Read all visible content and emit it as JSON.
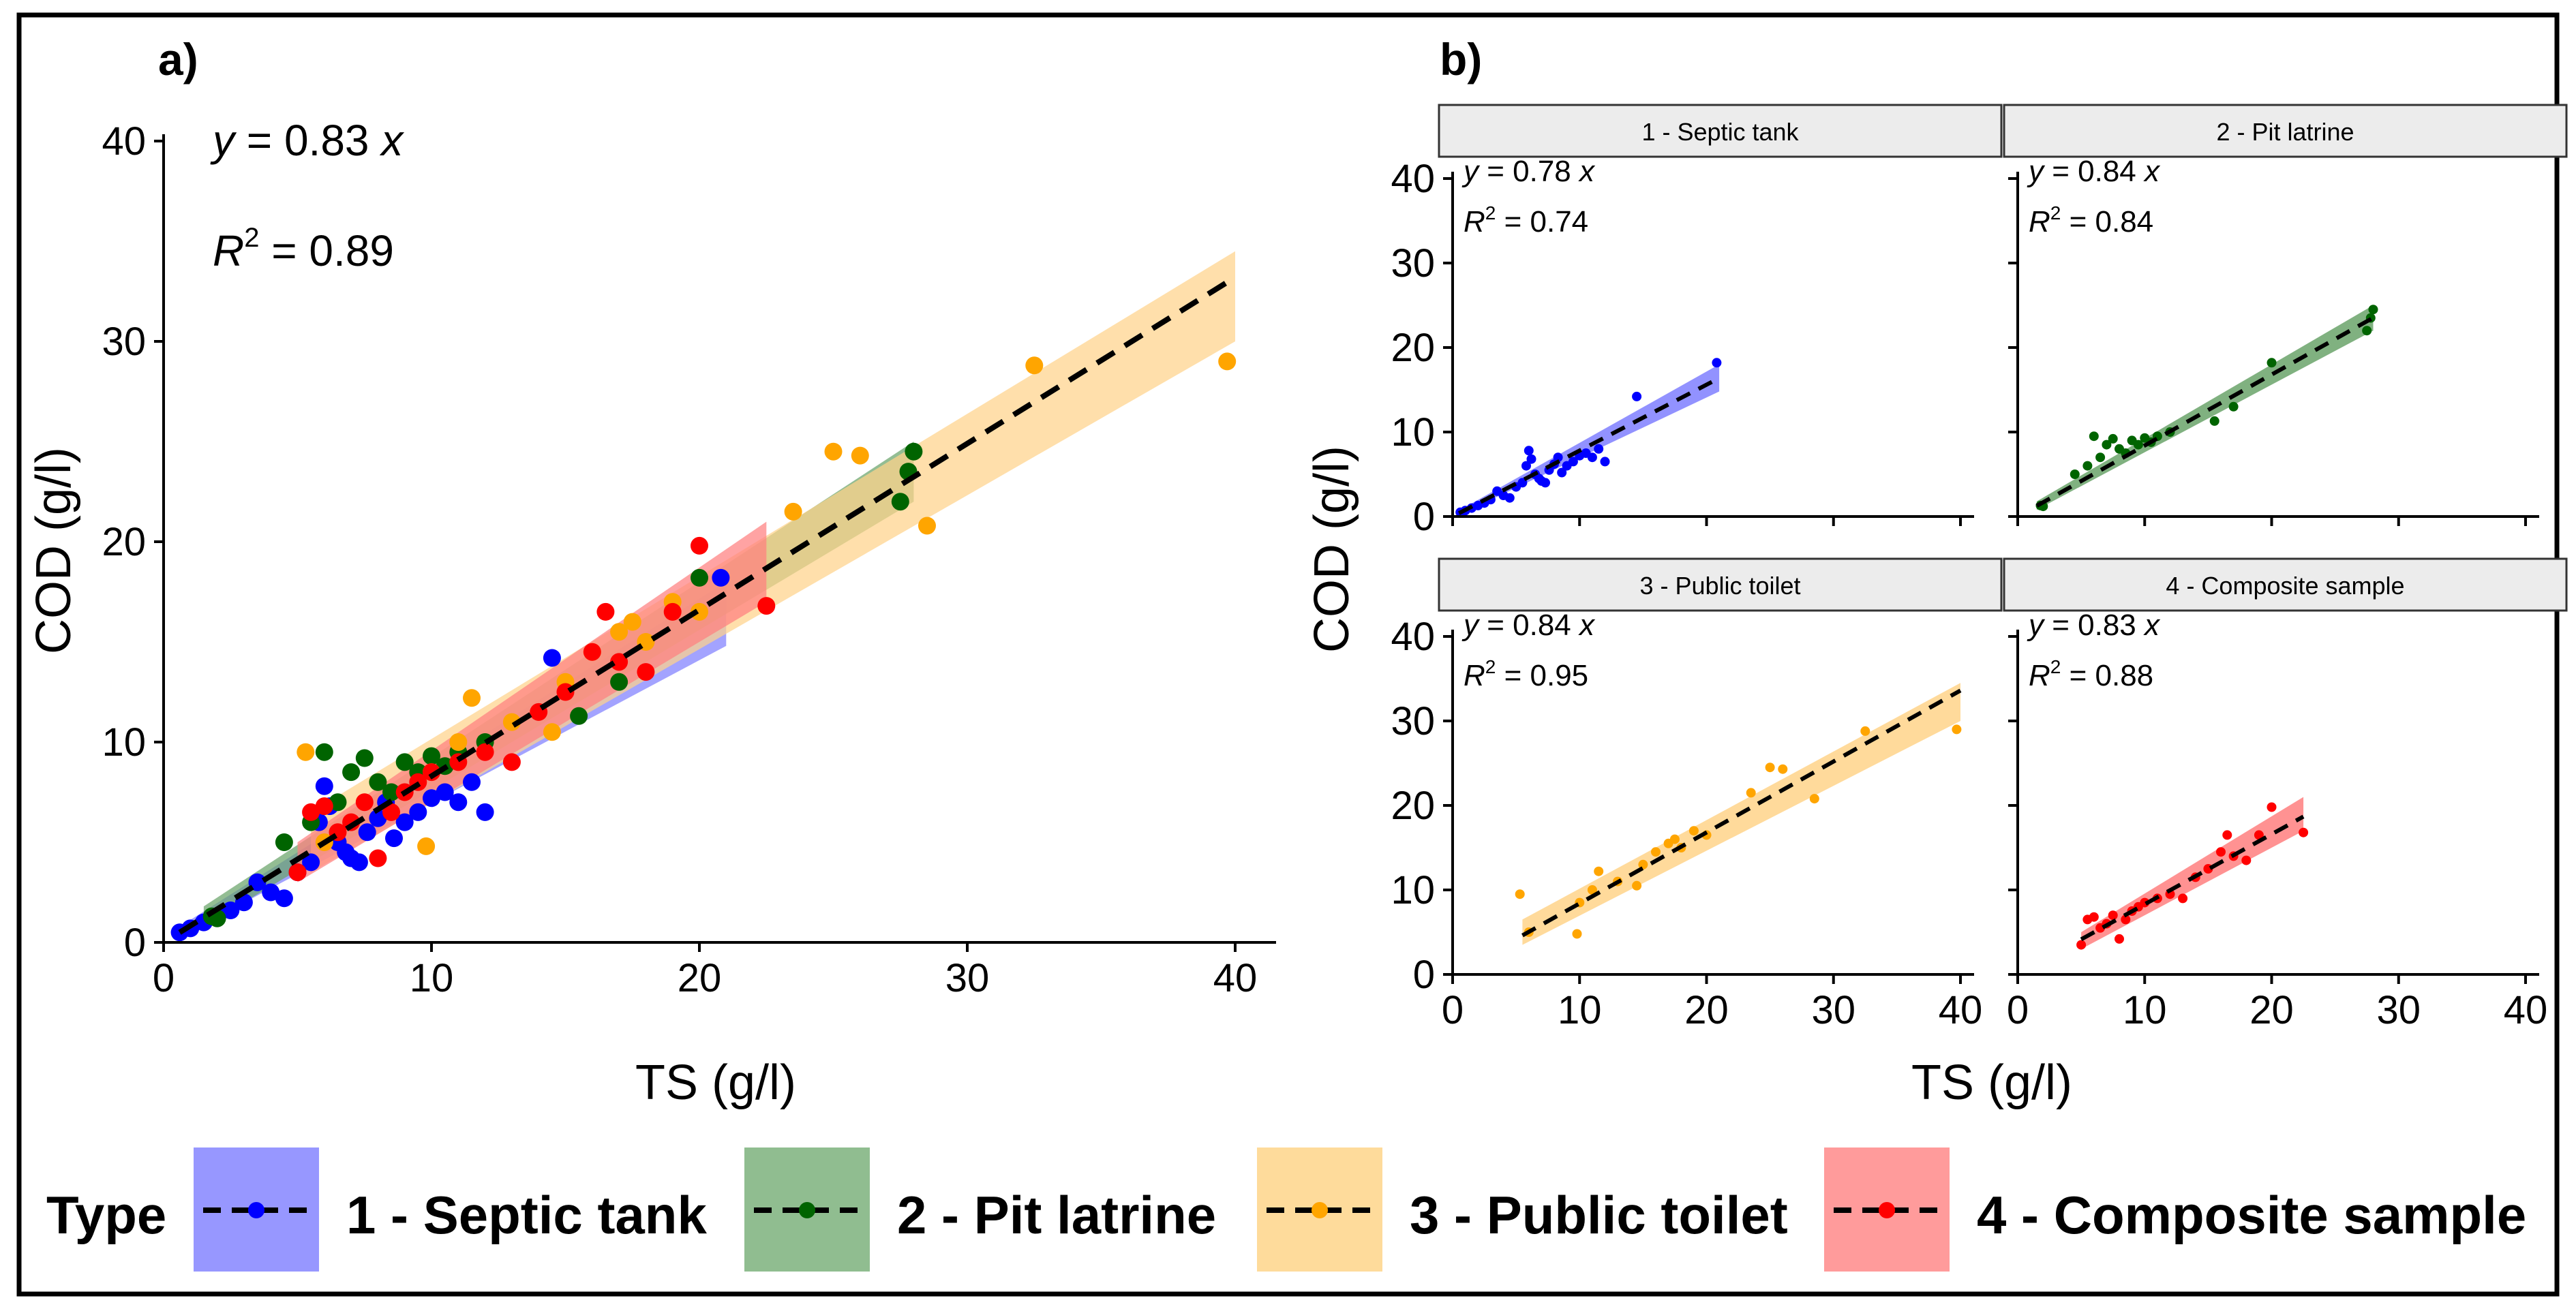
{
  "chart_data": {
    "type": "scatter",
    "axis_range": [
      0,
      40
    ],
    "ticks": [
      0,
      10,
      20,
      30,
      40
    ],
    "xlabel": "TS (g/l)",
    "ylabel": "COD (g/l)",
    "series_colors": {
      "1 - Septic tank": "#0000ff",
      "2 - Pit latrine": "#006400",
      "3 - Public toilet": "#ffa500",
      "4 - Composite sample": "#ff0000"
    },
    "band_colors": {
      "1 - Septic tank": "#7f7fff",
      "2 - Pit latrine": "#6aa36a",
      "3 - Public toilet": "#ffd38a",
      "4 - Composite sample": "#ff7f7f"
    },
    "panel_a": {
      "label": "a)",
      "eq": "y = 0.83 x",
      "r2": "R2 = 0.89",
      "r2_value": "0.89",
      "slope": 0.83
    },
    "panel_b": {
      "label": "b)",
      "facets": [
        {
          "name": "1 - Septic tank",
          "eq": "y = 0.78 x",
          "r2_value": "0.74",
          "slope": 0.78,
          "fit_x": [
            0.5,
            21
          ],
          "band": [
            [
              0.5,
              0.2,
              0.7
            ],
            [
              21,
              14.8,
              18.0
            ]
          ],
          "points": [
            [
              0.6,
              0.5
            ],
            [
              1.0,
              0.7
            ],
            [
              1.5,
              1.0
            ],
            [
              2.0,
              1.3
            ],
            [
              2.5,
              1.6
            ],
            [
              3.0,
              2.0
            ],
            [
              3.5,
              3.0
            ],
            [
              4.0,
              2.5
            ],
            [
              4.5,
              2.2
            ],
            [
              5.0,
              3.5
            ],
            [
              5.5,
              4.0
            ],
            [
              5.8,
              6.0
            ],
            [
              6.0,
              7.8
            ],
            [
              6.2,
              6.8
            ],
            [
              6.5,
              5.0
            ],
            [
              6.8,
              4.5
            ],
            [
              7.0,
              4.2
            ],
            [
              7.3,
              4.0
            ],
            [
              7.6,
              5.5
            ],
            [
              8.0,
              6.2
            ],
            [
              8.3,
              7.0
            ],
            [
              8.6,
              5.2
            ],
            [
              9.0,
              6.0
            ],
            [
              9.5,
              6.5
            ],
            [
              10.0,
              7.2
            ],
            [
              10.5,
              7.5
            ],
            [
              11.0,
              7.0
            ],
            [
              11.5,
              8.0
            ],
            [
              12.0,
              6.5
            ],
            [
              14.5,
              14.2
            ],
            [
              20.8,
              18.2
            ]
          ]
        },
        {
          "name": "2 - Pit latrine",
          "eq": "y = 0.84 x",
          "r2_value": "0.84",
          "slope": 0.84,
          "fit_x": [
            1.5,
            28
          ],
          "band": [
            [
              1.5,
              0.8,
              1.8
            ],
            [
              28,
              22.0,
              25.0
            ]
          ],
          "points": [
            [
              1.8,
              1.3
            ],
            [
              2.0,
              1.2
            ],
            [
              4.5,
              5.0
            ],
            [
              5.5,
              6.0
            ],
            [
              6.0,
              9.5
            ],
            [
              6.5,
              7.0
            ],
            [
              7.0,
              8.5
            ],
            [
              7.5,
              9.2
            ],
            [
              8.0,
              8.0
            ],
            [
              8.5,
              7.5
            ],
            [
              9.0,
              9.0
            ],
            [
              9.5,
              8.5
            ],
            [
              10.0,
              9.3
            ],
            [
              10.5,
              8.8
            ],
            [
              11.0,
              9.5
            ],
            [
              12.0,
              10.0
            ],
            [
              15.5,
              11.3
            ],
            [
              17.0,
              13.0
            ],
            [
              20.0,
              18.2
            ],
            [
              27.5,
              22.0
            ],
            [
              28.0,
              24.5
            ],
            [
              27.8,
              23.5
            ]
          ]
        },
        {
          "name": "3 - Public toilet",
          "eq": "y = 0.84 x",
          "r2_value": "0.95",
          "slope": 0.84,
          "fit_x": [
            5.5,
            40
          ],
          "band": [
            [
              5.5,
              3.5,
              6.5
            ],
            [
              40,
              30.0,
              34.5
            ]
          ],
          "points": [
            [
              5.3,
              9.5
            ],
            [
              6.0,
              5.0
            ],
            [
              9.8,
              4.8
            ],
            [
              10.0,
              8.5
            ],
            [
              11.0,
              10.0
            ],
            [
              11.5,
              12.2
            ],
            [
              13.0,
              11.0
            ],
            [
              14.5,
              10.5
            ],
            [
              15.0,
              13.0
            ],
            [
              16.0,
              14.5
            ],
            [
              17.0,
              15.5
            ],
            [
              17.5,
              16.0
            ],
            [
              18.0,
              15.0
            ],
            [
              19.0,
              17.0
            ],
            [
              20.0,
              16.5
            ],
            [
              23.5,
              21.5
            ],
            [
              25.0,
              24.5
            ],
            [
              26.0,
              24.3
            ],
            [
              28.5,
              20.8
            ],
            [
              32.5,
              28.8
            ],
            [
              39.7,
              29.0
            ]
          ]
        },
        {
          "name": "4 - Composite sample",
          "eq": "y = 0.83 x",
          "r2_value": "0.88",
          "slope": 0.83,
          "fit_x": [
            5,
            22.5
          ],
          "band": [
            [
              5,
              3.0,
              5.0
            ],
            [
              22.5,
              17.0,
              21.0
            ]
          ],
          "points": [
            [
              5.0,
              3.5
            ],
            [
              5.5,
              6.5
            ],
            [
              6.0,
              6.8
            ],
            [
              6.5,
              5.5
            ],
            [
              7.0,
              6.0
            ],
            [
              7.5,
              7.0
            ],
            [
              8.0,
              4.2
            ],
            [
              8.5,
              6.5
            ],
            [
              9.0,
              7.5
            ],
            [
              9.5,
              8.0
            ],
            [
              10.0,
              8.5
            ],
            [
              11.0,
              9.0
            ],
            [
              12.0,
              9.5
            ],
            [
              13.0,
              9.0
            ],
            [
              14.0,
              11.5
            ],
            [
              15.0,
              12.5
            ],
            [
              16.0,
              14.5
            ],
            [
              16.5,
              16.5
            ],
            [
              17.0,
              14.0
            ],
            [
              18.0,
              13.5
            ],
            [
              19.0,
              16.5
            ],
            [
              20.0,
              19.8
            ],
            [
              22.5,
              16.8
            ]
          ]
        }
      ]
    }
  },
  "legend": {
    "title": "Type",
    "items": [
      "1 - Septic tank",
      "2 - Pit latrine",
      "3 - Public toilet",
      "4 - Composite sample"
    ]
  }
}
